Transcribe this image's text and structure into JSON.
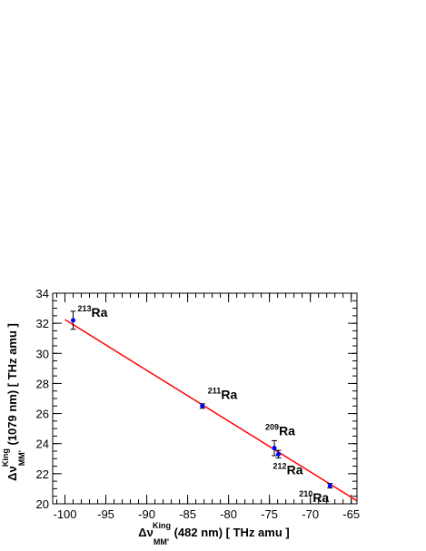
{
  "chart_data": {
    "type": "scatter",
    "x_axis": {
      "label_prefix": "Δν",
      "label_sup": "King",
      "label_sub": "MM'",
      "label_suffix": " (482 nm) [ THz amu ]",
      "range": [
        -101.5,
        -64.3
      ],
      "ticks": [
        -100,
        -95,
        -90,
        -85,
        -80,
        -75,
        -70,
        -65
      ],
      "tick_labels": [
        "-100",
        "-95",
        "-90",
        "-85",
        "-80",
        "-75",
        "-70",
        "-65"
      ]
    },
    "y_axis": {
      "label_prefix": "Δν",
      "label_sup": "King",
      "label_sub": "MM'",
      "label_suffix": " (1079 nm) [ THz amu ]",
      "range": [
        20,
        34
      ],
      "ticks": [
        20,
        22,
        24,
        26,
        28,
        30,
        32,
        34
      ],
      "tick_labels": [
        "20",
        "22",
        "24",
        "26",
        "28",
        "30",
        "32",
        "34"
      ]
    },
    "points": [
      {
        "mass": "213",
        "element": "Ra",
        "x": -99.0,
        "y": 32.2,
        "yerr": 0.6
      },
      {
        "mass": "211",
        "element": "Ra",
        "x": -83.2,
        "y": 26.5,
        "yerr": 0.15
      },
      {
        "mass": "209",
        "element": "Ra",
        "x": -74.4,
        "y": 23.7,
        "yerr": 0.5
      },
      {
        "mass": "212",
        "element": "Ra",
        "x": -73.9,
        "y": 23.3,
        "yerr": 0.25
      },
      {
        "mass": "210",
        "element": "Ra",
        "x": -67.6,
        "y": 21.2,
        "yerr": 0.15
      }
    ],
    "fit_line": {
      "x": [
        -100.0,
        -64.3
      ],
      "y": [
        32.25,
        20.2
      ],
      "color": "#ff0000"
    },
    "point_color": "#0000ff",
    "minor_ticks_x": 5,
    "minor_ticks_y": 4
  }
}
